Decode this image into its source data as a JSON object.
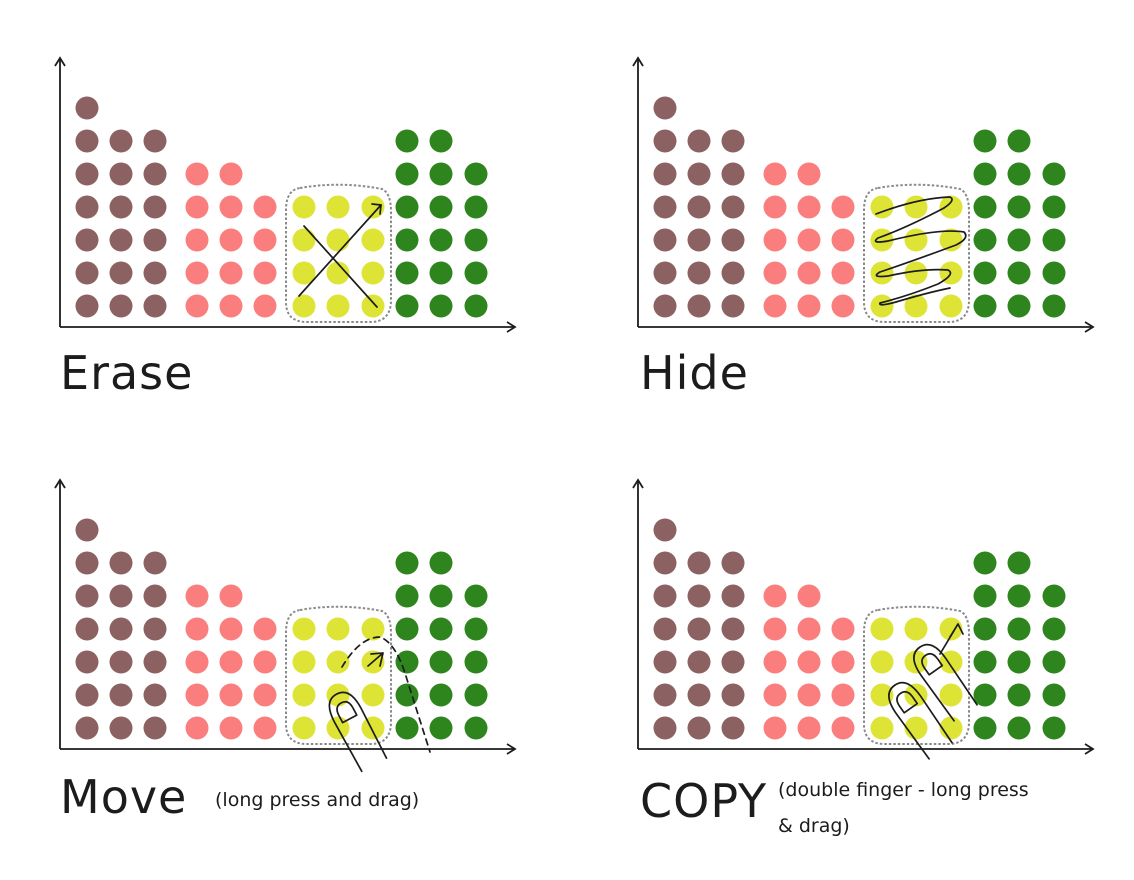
{
  "colors": {
    "brown": "#8b6161",
    "pink": "#fb7e7e",
    "yellow": "#dde435",
    "green": "#2e841d",
    "ink": "#1c1c1c",
    "selection": "#8a8a8a"
  },
  "dot_columns": [
    {
      "color": "brown",
      "count": 7
    },
    {
      "color": "brown",
      "count": 6
    },
    {
      "color": "brown",
      "count": 6
    },
    {
      "color": "pink",
      "count": 5
    },
    {
      "color": "pink",
      "count": 5
    },
    {
      "color": "pink",
      "count": 4
    },
    {
      "color": "yellow",
      "count": 4
    },
    {
      "color": "yellow",
      "count": 4
    },
    {
      "color": "yellow",
      "count": 4
    },
    {
      "color": "green",
      "count": 6
    },
    {
      "color": "green",
      "count": 6
    },
    {
      "color": "green",
      "count": 5
    }
  ],
  "panels": [
    {
      "id": "erase",
      "title": "Erase",
      "note": "",
      "gesture": "cross"
    },
    {
      "id": "hide",
      "title": "Hide",
      "note": "",
      "gesture": "zigzag"
    },
    {
      "id": "move",
      "title": "Move",
      "note": "(long press and drag)",
      "gesture": "single-finger-drag"
    },
    {
      "id": "copy",
      "title": "COPY",
      "note": "(double finger - long press & drag)",
      "gesture": "double-finger-drag"
    }
  ],
  "icons": [
    "up-arrow-icon",
    "right-arrow-icon",
    "finger-icon",
    "drag-arrow-icon"
  ]
}
